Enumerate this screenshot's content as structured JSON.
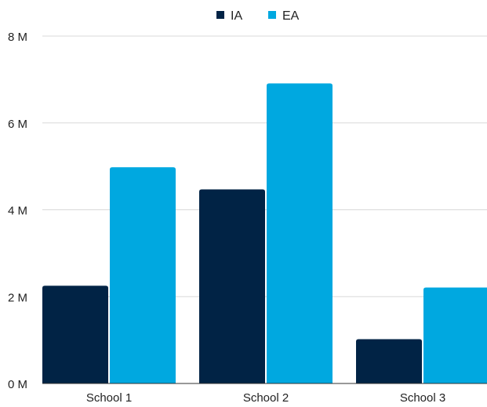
{
  "chart_data": {
    "type": "bar",
    "categories": [
      "School 1",
      "School 2",
      "School 3"
    ],
    "series": [
      {
        "name": "IA",
        "color": "#012345",
        "values": [
          2.25,
          4.47,
          1.02
        ]
      },
      {
        "name": "EA",
        "color": "#00a8e0",
        "values": [
          4.98,
          6.91,
          2.21
        ]
      }
    ],
    "yticks": [
      "0 M",
      "2 M",
      "4 M",
      "6 M",
      "8 M"
    ],
    "ytick_values": [
      0,
      2,
      4,
      6,
      8
    ],
    "ylim": [
      0,
      8
    ],
    "grid": true,
    "legend_position": "top-center"
  }
}
